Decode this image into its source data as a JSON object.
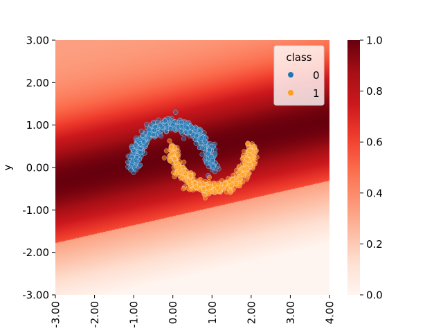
{
  "chart_data": {
    "type": "scatter",
    "title": "",
    "xlabel": "",
    "ylabel": "y",
    "xlim": [
      -3,
      4
    ],
    "ylim": [
      -3,
      3
    ],
    "x_ticks": [
      -3,
      -2,
      -1,
      0,
      1,
      2,
      3,
      4
    ],
    "y_ticks": [
      -3,
      -2,
      -1,
      0,
      1,
      2,
      3
    ],
    "x_tick_labels": [
      "-3.00",
      "-2.00",
      "-1.00",
      "0.00",
      "1.00",
      "2.00",
      "3.00",
      "4.00"
    ],
    "y_tick_labels": [
      "-3.00",
      "-2.00",
      "-1.00",
      "0.00",
      "1.00",
      "2.00",
      "3.00"
    ],
    "background": {
      "type": "heatmap",
      "colormap": "Reds",
      "description_values": {
        "ridge_line": {
          "slope": 0.21,
          "intercept": 0.28
        },
        "band_width": 1.45,
        "boundary_line": {
          "slope": 0.21,
          "intercept": -1.15
        }
      },
      "colorbar": {
        "range": [
          0,
          1
        ],
        "ticks": [
          0,
          0.2,
          0.4,
          0.6,
          0.8,
          1
        ],
        "tick_labels": [
          "0.0",
          "0.2",
          "0.4",
          "0.6",
          "0.8",
          "1.0"
        ]
      }
    },
    "legend": {
      "title": "class",
      "placement": "top-right",
      "entries": [
        "0",
        "1"
      ]
    },
    "series": [
      {
        "name": "0",
        "color": "#1f77b4",
        "shape": "upper-half-moon",
        "center": [
          0,
          0
        ],
        "radius": 1,
        "angle_range_deg": [
          0,
          180
        ],
        "noise": 0.08,
        "count": 500
      },
      {
        "name": "1",
        "color": "#ff9f1c",
        "shape": "lower-half-moon",
        "center": [
          1,
          0.5
        ],
        "radius": 1,
        "angle_range_deg": [
          180,
          360
        ],
        "noise": 0.08,
        "count": 500
      }
    ]
  }
}
